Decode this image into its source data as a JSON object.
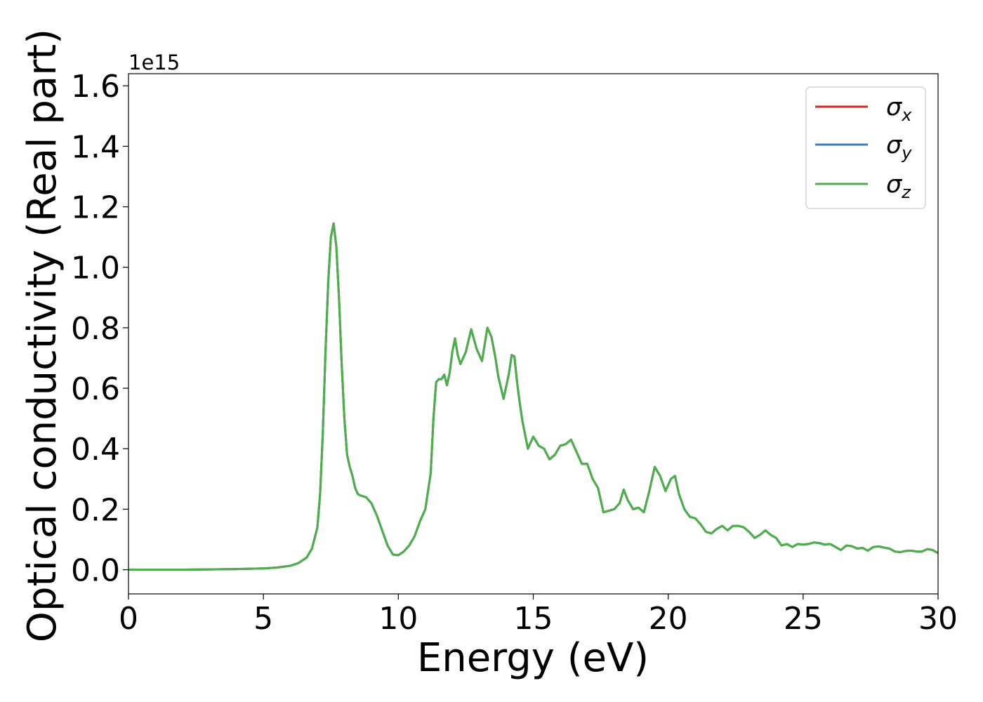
{
  "chart_data": {
    "type": "line",
    "xlabel": "Energy (eV)",
    "ylabel": "Optical conductivity (Real part)",
    "y_offset_label": "1e15",
    "y_scale_factor": 1000000000000000.0,
    "xlim": [
      0,
      30
    ],
    "ylim": [
      -0.08,
      1.64
    ],
    "x_ticks": [
      0,
      5,
      10,
      15,
      20,
      25,
      30
    ],
    "x_tick_labels": [
      "0",
      "5",
      "10",
      "15",
      "20",
      "25",
      "30"
    ],
    "y_ticks": [
      0.0,
      0.2,
      0.4,
      0.6,
      0.8,
      1.0,
      1.2,
      1.4,
      1.6
    ],
    "y_tick_labels": [
      "0.0",
      "0.2",
      "0.4",
      "0.6",
      "0.8",
      "1.0",
      "1.2",
      "1.4",
      "1.6"
    ],
    "grid": false,
    "legend_position": "top-right",
    "series": [
      {
        "name": "σx",
        "label_base": "σ",
        "label_sub": "x",
        "color": "#d62728",
        "x": [
          0,
          1,
          2,
          3,
          4,
          5,
          5.5,
          6,
          6.3,
          6.6,
          6.8,
          7.0,
          7.1,
          7.2,
          7.3,
          7.4,
          7.5,
          7.6,
          7.7,
          7.8,
          7.9,
          8.0,
          8.1,
          8.2,
          8.3,
          8.4,
          8.5,
          8.6,
          8.8,
          9.0,
          9.2,
          9.4,
          9.6,
          9.8,
          10.0,
          10.2,
          10.4,
          10.6,
          10.8,
          11.0,
          11.2,
          11.3,
          11.4,
          11.5,
          11.6,
          11.7,
          11.8,
          11.9,
          12.0,
          12.1,
          12.2,
          12.3,
          12.5,
          12.7,
          12.9,
          13.1,
          13.3,
          13.45,
          13.6,
          13.7,
          13.9,
          14.1,
          14.2,
          14.3,
          14.4,
          14.5,
          14.6,
          14.8,
          15.0,
          15.2,
          15.4,
          15.6,
          15.8,
          16.0,
          16.2,
          16.4,
          16.6,
          16.8,
          17.0,
          17.2,
          17.4,
          17.6,
          17.8,
          18.0,
          18.2,
          18.35,
          18.5,
          18.7,
          18.9,
          19.1,
          19.3,
          19.5,
          19.7,
          19.9,
          20.1,
          20.25,
          20.4,
          20.6,
          20.8,
          21.0,
          21.2,
          21.4,
          21.6,
          21.8,
          22.0,
          22.2,
          22.4,
          22.6,
          22.8,
          23.0,
          23.2,
          23.4,
          23.6,
          23.8,
          24.0,
          24.2,
          24.4,
          24.6,
          24.8,
          25.0,
          25.2,
          25.4,
          25.6,
          25.8,
          26.0,
          26.2,
          26.4,
          26.6,
          26.8,
          27.0,
          27.2,
          27.4,
          27.6,
          27.8,
          28.0,
          28.2,
          28.4,
          28.6,
          28.8,
          29.0,
          29.2,
          29.4,
          29.6,
          29.8,
          30.0
        ],
        "y": [
          0,
          0,
          0,
          0.001,
          0.002,
          0.004,
          0.007,
          0.013,
          0.022,
          0.04,
          0.07,
          0.14,
          0.25,
          0.45,
          0.72,
          0.95,
          1.1,
          1.145,
          1.07,
          0.9,
          0.68,
          0.5,
          0.38,
          0.34,
          0.31,
          0.27,
          0.25,
          0.245,
          0.24,
          0.22,
          0.18,
          0.13,
          0.08,
          0.05,
          0.048,
          0.06,
          0.08,
          0.11,
          0.16,
          0.2,
          0.32,
          0.5,
          0.62,
          0.63,
          0.63,
          0.645,
          0.61,
          0.65,
          0.72,
          0.765,
          0.71,
          0.68,
          0.72,
          0.795,
          0.73,
          0.69,
          0.8,
          0.77,
          0.7,
          0.64,
          0.565,
          0.65,
          0.71,
          0.705,
          0.62,
          0.55,
          0.49,
          0.4,
          0.44,
          0.41,
          0.4,
          0.365,
          0.38,
          0.41,
          0.415,
          0.43,
          0.39,
          0.35,
          0.35,
          0.3,
          0.27,
          0.19,
          0.195,
          0.2,
          0.22,
          0.265,
          0.23,
          0.2,
          0.205,
          0.19,
          0.26,
          0.34,
          0.31,
          0.26,
          0.3,
          0.31,
          0.25,
          0.2,
          0.175,
          0.17,
          0.15,
          0.125,
          0.12,
          0.135,
          0.145,
          0.13,
          0.145,
          0.145,
          0.14,
          0.125,
          0.105,
          0.115,
          0.13,
          0.115,
          0.105,
          0.08,
          0.085,
          0.075,
          0.085,
          0.083,
          0.085,
          0.09,
          0.088,
          0.083,
          0.085,
          0.075,
          0.065,
          0.08,
          0.078,
          0.07,
          0.072,
          0.063,
          0.075,
          0.077,
          0.073,
          0.07,
          0.06,
          0.058,
          0.062,
          0.063,
          0.06,
          0.06,
          0.068,
          0.065,
          0.055
        ]
      },
      {
        "name": "σy",
        "label_base": "σ",
        "label_sub": "y",
        "color": "#377eb8",
        "x": [
          0,
          1,
          2,
          3,
          4,
          5,
          5.5,
          6,
          6.3,
          6.6,
          6.8,
          7.0,
          7.1,
          7.2,
          7.3,
          7.4,
          7.5,
          7.6,
          7.7,
          7.8,
          7.9,
          8.0,
          8.1,
          8.2,
          8.3,
          8.4,
          8.5,
          8.6,
          8.8,
          9.0,
          9.2,
          9.4,
          9.6,
          9.8,
          10.0,
          10.2,
          10.4,
          10.6,
          10.8,
          11.0,
          11.2,
          11.3,
          11.4,
          11.5,
          11.6,
          11.7,
          11.8,
          11.9,
          12.0,
          12.1,
          12.2,
          12.3,
          12.5,
          12.7,
          12.9,
          13.1,
          13.3,
          13.45,
          13.6,
          13.7,
          13.9,
          14.1,
          14.2,
          14.3,
          14.4,
          14.5,
          14.6,
          14.8,
          15.0,
          15.2,
          15.4,
          15.6,
          15.8,
          16.0,
          16.2,
          16.4,
          16.6,
          16.8,
          17.0,
          17.2,
          17.4,
          17.6,
          17.8,
          18.0,
          18.2,
          18.35,
          18.5,
          18.7,
          18.9,
          19.1,
          19.3,
          19.5,
          19.7,
          19.9,
          20.1,
          20.25,
          20.4,
          20.6,
          20.8,
          21.0,
          21.2,
          21.4,
          21.6,
          21.8,
          22.0,
          22.2,
          22.4,
          22.6,
          22.8,
          23.0,
          23.2,
          23.4,
          23.6,
          23.8,
          24.0,
          24.2,
          24.4,
          24.6,
          24.8,
          25.0,
          25.2,
          25.4,
          25.6,
          25.8,
          26.0,
          26.2,
          26.4,
          26.6,
          26.8,
          27.0,
          27.2,
          27.4,
          27.6,
          27.8,
          28.0,
          28.2,
          28.4,
          28.6,
          28.8,
          29.0,
          29.2,
          29.4,
          29.6,
          29.8,
          30.0
        ],
        "y": [
          0,
          0,
          0,
          0.001,
          0.002,
          0.004,
          0.007,
          0.013,
          0.022,
          0.04,
          0.07,
          0.14,
          0.25,
          0.45,
          0.72,
          0.95,
          1.1,
          1.145,
          1.07,
          0.9,
          0.68,
          0.5,
          0.38,
          0.34,
          0.31,
          0.27,
          0.25,
          0.245,
          0.24,
          0.22,
          0.18,
          0.13,
          0.08,
          0.05,
          0.048,
          0.06,
          0.08,
          0.11,
          0.16,
          0.2,
          0.32,
          0.5,
          0.62,
          0.63,
          0.63,
          0.645,
          0.61,
          0.65,
          0.72,
          0.765,
          0.71,
          0.68,
          0.72,
          0.795,
          0.73,
          0.69,
          0.8,
          0.77,
          0.7,
          0.64,
          0.565,
          0.65,
          0.71,
          0.705,
          0.62,
          0.55,
          0.49,
          0.4,
          0.44,
          0.41,
          0.4,
          0.365,
          0.38,
          0.41,
          0.415,
          0.43,
          0.39,
          0.35,
          0.35,
          0.3,
          0.27,
          0.19,
          0.195,
          0.2,
          0.22,
          0.265,
          0.23,
          0.2,
          0.205,
          0.19,
          0.26,
          0.34,
          0.31,
          0.26,
          0.3,
          0.31,
          0.25,
          0.2,
          0.175,
          0.17,
          0.15,
          0.125,
          0.12,
          0.135,
          0.145,
          0.13,
          0.145,
          0.145,
          0.14,
          0.125,
          0.105,
          0.115,
          0.13,
          0.115,
          0.105,
          0.08,
          0.085,
          0.075,
          0.085,
          0.083,
          0.085,
          0.09,
          0.088,
          0.083,
          0.085,
          0.075,
          0.065,
          0.08,
          0.078,
          0.07,
          0.072,
          0.063,
          0.075,
          0.077,
          0.073,
          0.07,
          0.06,
          0.058,
          0.062,
          0.063,
          0.06,
          0.06,
          0.068,
          0.065,
          0.055
        ]
      },
      {
        "name": "σz",
        "label_base": "σ",
        "label_sub": "z",
        "color": "#4daf4a",
        "x": [
          0,
          1,
          2,
          3,
          4,
          5,
          5.5,
          6,
          6.3,
          6.6,
          6.8,
          7.0,
          7.1,
          7.2,
          7.3,
          7.4,
          7.5,
          7.6,
          7.7,
          7.8,
          7.9,
          8.0,
          8.1,
          8.2,
          8.3,
          8.4,
          8.5,
          8.6,
          8.8,
          9.0,
          9.2,
          9.4,
          9.6,
          9.8,
          10.0,
          10.2,
          10.4,
          10.6,
          10.8,
          11.0,
          11.2,
          11.3,
          11.4,
          11.5,
          11.6,
          11.7,
          11.8,
          11.9,
          12.0,
          12.1,
          12.2,
          12.3,
          12.5,
          12.7,
          12.9,
          13.1,
          13.3,
          13.45,
          13.6,
          13.7,
          13.9,
          14.1,
          14.2,
          14.3,
          14.4,
          14.5,
          14.6,
          14.8,
          15.0,
          15.2,
          15.4,
          15.6,
          15.8,
          16.0,
          16.2,
          16.4,
          16.6,
          16.8,
          17.0,
          17.2,
          17.4,
          17.6,
          17.8,
          18.0,
          18.2,
          18.35,
          18.5,
          18.7,
          18.9,
          19.1,
          19.3,
          19.5,
          19.7,
          19.9,
          20.1,
          20.25,
          20.4,
          20.6,
          20.8,
          21.0,
          21.2,
          21.4,
          21.6,
          21.8,
          22.0,
          22.2,
          22.4,
          22.6,
          22.8,
          23.0,
          23.2,
          23.4,
          23.6,
          23.8,
          24.0,
          24.2,
          24.4,
          24.6,
          24.8,
          25.0,
          25.2,
          25.4,
          25.6,
          25.8,
          26.0,
          26.2,
          26.4,
          26.6,
          26.8,
          27.0,
          27.2,
          27.4,
          27.6,
          27.8,
          28.0,
          28.2,
          28.4,
          28.6,
          28.8,
          29.0,
          29.2,
          29.4,
          29.6,
          29.8,
          30.0
        ],
        "y": [
          0,
          0,
          0,
          0.001,
          0.002,
          0.004,
          0.007,
          0.013,
          0.022,
          0.04,
          0.07,
          0.14,
          0.25,
          0.45,
          0.72,
          0.95,
          1.1,
          1.145,
          1.07,
          0.9,
          0.68,
          0.5,
          0.38,
          0.34,
          0.31,
          0.27,
          0.25,
          0.245,
          0.24,
          0.22,
          0.18,
          0.13,
          0.08,
          0.05,
          0.048,
          0.06,
          0.08,
          0.11,
          0.16,
          0.2,
          0.32,
          0.5,
          0.62,
          0.63,
          0.63,
          0.645,
          0.61,
          0.65,
          0.72,
          0.765,
          0.71,
          0.68,
          0.72,
          0.795,
          0.73,
          0.69,
          0.8,
          0.77,
          0.7,
          0.64,
          0.565,
          0.65,
          0.71,
          0.705,
          0.62,
          0.55,
          0.49,
          0.4,
          0.44,
          0.41,
          0.4,
          0.365,
          0.38,
          0.41,
          0.415,
          0.43,
          0.39,
          0.35,
          0.35,
          0.3,
          0.27,
          0.19,
          0.195,
          0.2,
          0.22,
          0.265,
          0.23,
          0.2,
          0.205,
          0.19,
          0.26,
          0.34,
          0.31,
          0.26,
          0.3,
          0.31,
          0.25,
          0.2,
          0.175,
          0.17,
          0.15,
          0.125,
          0.12,
          0.135,
          0.145,
          0.13,
          0.145,
          0.145,
          0.14,
          0.125,
          0.105,
          0.115,
          0.13,
          0.115,
          0.105,
          0.08,
          0.085,
          0.075,
          0.085,
          0.083,
          0.085,
          0.09,
          0.088,
          0.083,
          0.085,
          0.075,
          0.065,
          0.08,
          0.078,
          0.07,
          0.072,
          0.063,
          0.075,
          0.077,
          0.073,
          0.07,
          0.06,
          0.058,
          0.062,
          0.063,
          0.06,
          0.06,
          0.068,
          0.065,
          0.055
        ]
      }
    ]
  }
}
